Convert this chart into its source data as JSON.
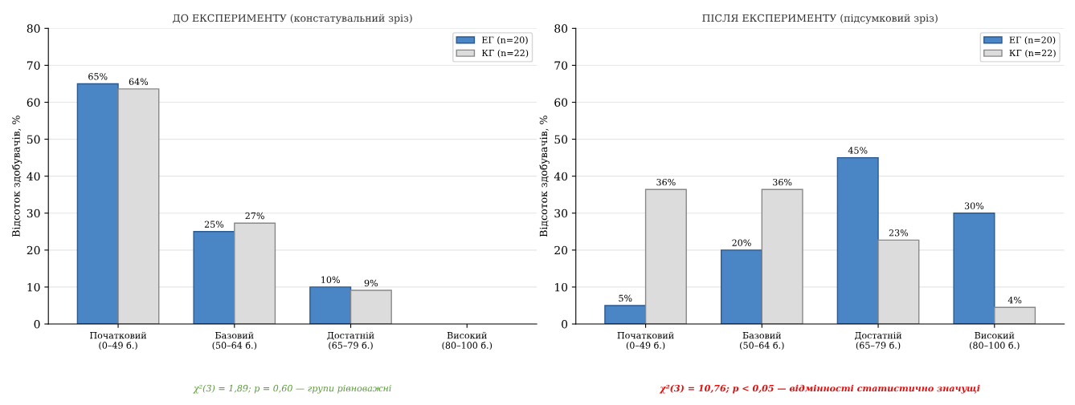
{
  "chart_data": [
    {
      "type": "bar",
      "title": "ДО ЕКСПЕРИМЕНТУ (констатувальний зріз)",
      "ylabel": "Відсоток здобувачів, %",
      "categories": [
        "Початковий\n(0–49 б.)",
        "Базовий\n(50–64 б.)",
        "Достатній\n(65–79 б.)",
        "Високий\n(80–100 б.)"
      ],
      "series": [
        {
          "name": "ЕГ (n=20)",
          "color": "#4a86c5",
          "values": [
            65,
            25,
            10,
            0
          ],
          "value_labels": [
            "65%",
            "25%",
            "10%",
            null
          ]
        },
        {
          "name": "КГ (n=22)",
          "color": "#dcdcdc",
          "values": [
            63.6,
            27.3,
            9.1,
            0
          ],
          "value_labels": [
            "64%",
            "27%",
            "9%",
            null
          ]
        }
      ],
      "ylim": [
        0,
        80
      ],
      "yticks": [
        0,
        10,
        20,
        30,
        40,
        50,
        60,
        70,
        80
      ],
      "grid": "y",
      "legend": "top right",
      "annotations": [
        "χ²(3) = 1,89; p = 0,60 — групи рівноважні"
      ]
    },
    {
      "type": "bar",
      "title": "ПІСЛЯ ЕКСПЕРИМЕНТУ (підсумковий зріз)",
      "ylabel": "Відсоток здобувачів, %",
      "categories": [
        "Початковий\n(0–49 б.)",
        "Базовий\n(50–64 б.)",
        "Достатній\n(65–79 б.)",
        "Високий\n(80–100 б.)"
      ],
      "series": [
        {
          "name": "ЕГ (n=20)",
          "color": "#4a86c5",
          "values": [
            5,
            20,
            45,
            30
          ],
          "value_labels": [
            "5%",
            "20%",
            "45%",
            "30%"
          ]
        },
        {
          "name": "КГ (n=22)",
          "color": "#dcdcdc",
          "values": [
            36.4,
            36.4,
            22.7,
            4.5
          ],
          "value_labels": [
            "36%",
            "36%",
            "23%",
            "4%"
          ]
        }
      ],
      "ylim": [
        0,
        80
      ],
      "yticks": [
        0,
        10,
        20,
        30,
        40,
        50,
        60,
        70,
        80
      ],
      "grid": "y",
      "legend": "top right",
      "annotations": [
        "χ²(3) = 10,76; p < 0,05 — відмінності статистично значущі"
      ]
    }
  ]
}
